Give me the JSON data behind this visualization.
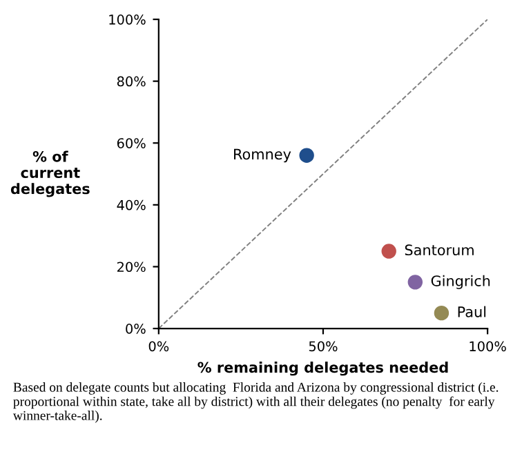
{
  "chart_data": {
    "type": "scatter",
    "xlabel": "% remaining delegates needed",
    "ylabel": "% of\ncurrent\ndelegates",
    "marker": "circle",
    "grid": false,
    "legend": false,
    "xlim": [
      0,
      100
    ],
    "ylim": [
      0,
      100
    ],
    "xticks": [
      {
        "value": 0,
        "label": "0%"
      },
      {
        "value": 50,
        "label": "50%"
      },
      {
        "value": 100,
        "label": "100%"
      }
    ],
    "yticks": [
      {
        "value": 0,
        "label": "0%"
      },
      {
        "value": 20,
        "label": "20%"
      },
      {
        "value": 40,
        "label": "40%"
      },
      {
        "value": 60,
        "label": "60%"
      },
      {
        "value": 80,
        "label": "80%"
      },
      {
        "value": 100,
        "label": "100%"
      }
    ],
    "series": [
      {
        "name": "Romney",
        "color": "#1f4e8c",
        "x": [
          45
        ],
        "values": [
          56
        ]
      },
      {
        "name": "Santorum",
        "color": "#c0504d",
        "x": [
          70
        ],
        "values": [
          25
        ]
      },
      {
        "name": "Gingrich",
        "color": "#8064a2",
        "x": [
          78
        ],
        "values": [
          15
        ]
      },
      {
        "name": "Paul",
        "color": "#948a54",
        "x": [
          86
        ],
        "values": [
          5
        ]
      },
      {
        "type": "line",
        "color": "#808080",
        "line_style": "dashed",
        "marker": "none",
        "x": [
          0,
          100
        ],
        "values": [
          0,
          100
        ]
      }
    ],
    "annotations": [
      "Based on delegate counts but allocating  Florida and Arizona by congressional district (i.e. proportional within state, take all by district) with all their delegates (no penalty  for early winner-take-all)."
    ]
  }
}
